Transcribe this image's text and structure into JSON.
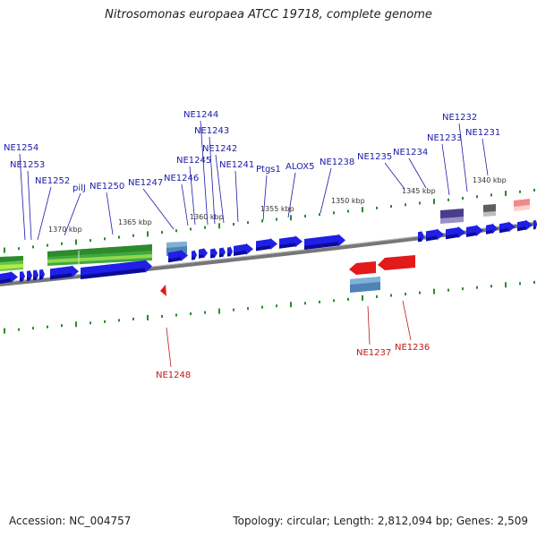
{
  "title": "Nitrosomonas europaea ATCC 19718, complete genome",
  "accession": "Accession: NC_004757",
  "summary": "Topology: circular; Length: 2,812,094 bp; Genes: 2,509",
  "colors": {
    "cds": "#1f1fe6",
    "rrna": "#3fa83f",
    "trna": "#7fd23f",
    "reverse": "#e21a1a",
    "misc": "#4f83b5",
    "dark": "#4a3d8c",
    "grey": "#6e6e6e",
    "pink": "#f08a8a",
    "top_label": "#1a1aa8",
    "bottom_label": "#c01818"
  },
  "scale_ticks": [
    "1370 kbp",
    "1365 kbp",
    "1360 kbp",
    "1355 kbp",
    "1350 kbp",
    "1345 kbp",
    "1340 kbp"
  ],
  "top_labels": [
    "NE1254",
    "NE1253",
    "NE1252",
    "pilJ",
    "NE1250",
    "NE1247",
    "NE1246",
    "NE1245",
    "NE1244",
    "NE1243",
    "NE1242",
    "NE1241",
    "Ptgs1",
    "ALOX5",
    "NE1238",
    "NE1235",
    "NE1234",
    "NE1233",
    "NE1232",
    "NE1231"
  ],
  "bottom_labels": [
    "NE1248",
    "NE1237",
    "NE1236"
  ]
}
